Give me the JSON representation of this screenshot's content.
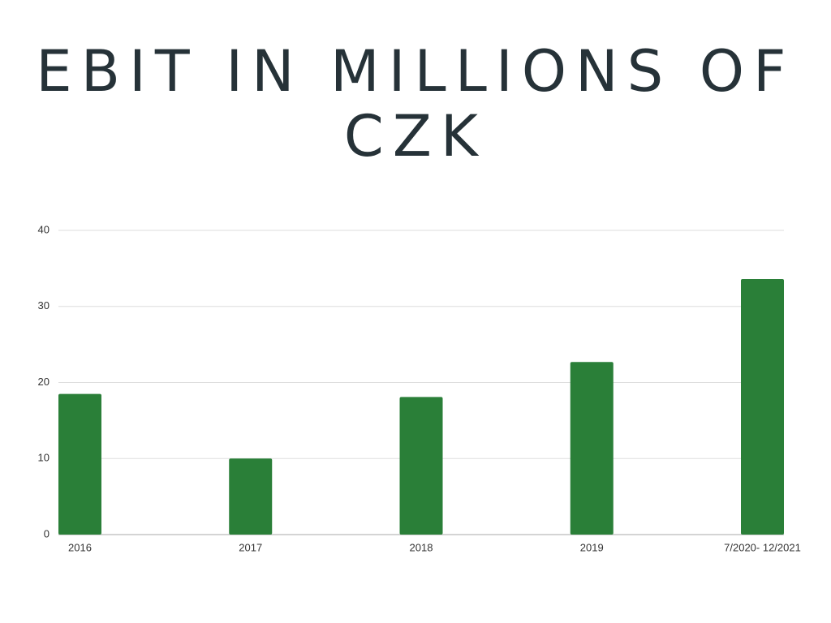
{
  "chart_data": {
    "type": "bar",
    "title": "EBIT IN MILLIONS OF CZK",
    "categories": [
      "2016",
      "2017",
      "2018",
      "2019",
      "7/2020- 12/2021"
    ],
    "values": [
      18.5,
      10,
      18.1,
      22.7,
      33.6
    ],
    "color": "#2a7f38",
    "ylim": [
      0,
      40
    ],
    "yticks": [
      0,
      10,
      20,
      30,
      40
    ],
    "grid": true
  }
}
